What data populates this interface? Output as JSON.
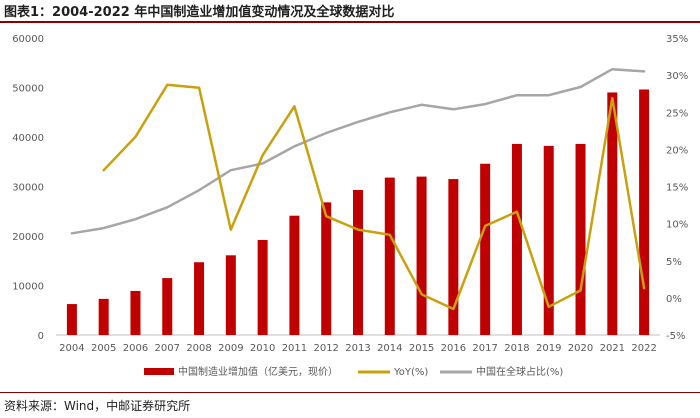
{
  "header": {
    "title": "图表1：2004-2022 年中国制造业增加值变动情况及全球数据对比"
  },
  "footer": {
    "source": "资料来源：Wind，中邮证券研究所"
  },
  "colors": {
    "bar": "#c00000",
    "yoy": "#c9a00d",
    "share": "#a6a6a6",
    "rule": "#8b0000"
  },
  "chart_data": {
    "type": "bar",
    "categories": [
      "2004",
      "2005",
      "2006",
      "2007",
      "2008",
      "2009",
      "2010",
      "2011",
      "2012",
      "2013",
      "2014",
      "2015",
      "2016",
      "2017",
      "2018",
      "2019",
      "2020",
      "2021",
      "2022"
    ],
    "series": [
      {
        "name": "中国制造业增加值（亿美元，现价）",
        "type": "bar",
        "axis": "left",
        "values": [
          6250,
          7300,
          8900,
          11500,
          14700,
          16100,
          19200,
          24100,
          26800,
          29300,
          31800,
          32000,
          31500,
          34600,
          38600,
          38200,
          38600,
          49000,
          49600
        ]
      },
      {
        "name": "YoY(%)",
        "type": "line",
        "axis": "right",
        "values": [
          null,
          17.2,
          21.7,
          28.7,
          28.3,
          9.2,
          19.2,
          25.8,
          11.0,
          9.2,
          8.5,
          0.5,
          -1.5,
          9.7,
          11.6,
          -1.2,
          1.0,
          26.9,
          1.3
        ]
      },
      {
        "name": "中国在全球占比(%)",
        "type": "line",
        "axis": "right",
        "values": [
          8.7,
          9.4,
          10.6,
          12.2,
          14.5,
          17.2,
          18.1,
          20.4,
          22.2,
          23.7,
          25.0,
          26.0,
          25.4,
          26.1,
          27.3,
          27.3,
          28.4,
          30.8,
          30.5
        ]
      }
    ],
    "y_left": {
      "ylim": [
        0,
        60000
      ],
      "ticks": [
        "0",
        "10000",
        "20000",
        "30000",
        "40000",
        "50000",
        "60000"
      ]
    },
    "y_right": {
      "ylim": [
        -5,
        35
      ],
      "ticks": [
        "-5%",
        "0%",
        "5%",
        "10%",
        "15%",
        "20%",
        "25%",
        "30%",
        "35%"
      ]
    },
    "grid": false,
    "legend_position": "bottom"
  }
}
